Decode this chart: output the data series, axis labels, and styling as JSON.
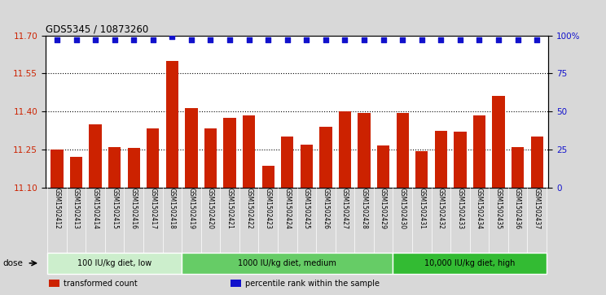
{
  "title": "GDS5345 / 10873260",
  "samples": [
    "GSM1502412",
    "GSM1502413",
    "GSM1502414",
    "GSM1502415",
    "GSM1502416",
    "GSM1502417",
    "GSM1502418",
    "GSM1502419",
    "GSM1502420",
    "GSM1502421",
    "GSM1502422",
    "GSM1502423",
    "GSM1502424",
    "GSM1502425",
    "GSM1502426",
    "GSM1502427",
    "GSM1502428",
    "GSM1502429",
    "GSM1502430",
    "GSM1502431",
    "GSM1502432",
    "GSM1502433",
    "GSM1502434",
    "GSM1502435",
    "GSM1502436",
    "GSM1502437"
  ],
  "bar_values": [
    11.25,
    11.22,
    11.35,
    11.26,
    11.255,
    11.335,
    11.6,
    11.415,
    11.335,
    11.375,
    11.385,
    11.185,
    11.3,
    11.27,
    11.34,
    11.4,
    11.395,
    11.265,
    11.395,
    11.245,
    11.325,
    11.32,
    11.385,
    11.46,
    11.26,
    11.3
  ],
  "percentile_values": [
    97,
    97,
    97,
    97,
    97,
    97,
    99,
    97,
    97,
    97,
    97,
    97,
    97,
    97,
    97,
    97,
    97,
    97,
    97,
    97,
    97,
    97,
    97,
    97,
    97,
    97
  ],
  "bar_color": "#cc2200",
  "percentile_color": "#1111cc",
  "ylim_left": [
    11.1,
    11.7
  ],
  "yticks_left": [
    11.1,
    11.25,
    11.4,
    11.55,
    11.7
  ],
  "ylim_right": [
    0,
    100
  ],
  "yticks_right": [
    0,
    25,
    50,
    75,
    100
  ],
  "yticklabels_right": [
    "0",
    "25",
    "50",
    "75",
    "100%"
  ],
  "grid_values": [
    11.25,
    11.4,
    11.55
  ],
  "groups": [
    {
      "label": "100 IU/kg diet, low",
      "start": 0,
      "end": 7,
      "color": "#cceecc"
    },
    {
      "label": "1000 IU/kg diet, medium",
      "start": 7,
      "end": 18,
      "color": "#66cc66"
    },
    {
      "label": "10,000 IU/kg diet, high",
      "start": 18,
      "end": 26,
      "color": "#33bb33"
    }
  ],
  "dose_label": "dose",
  "legend_items": [
    {
      "label": "transformed count",
      "color": "#cc2200"
    },
    {
      "label": "percentile rank within the sample",
      "color": "#1111cc"
    }
  ],
  "bg_color": "#d8d8d8",
  "plot_bg_color": "#ffffff",
  "xticklabel_bg": "#cccccc"
}
